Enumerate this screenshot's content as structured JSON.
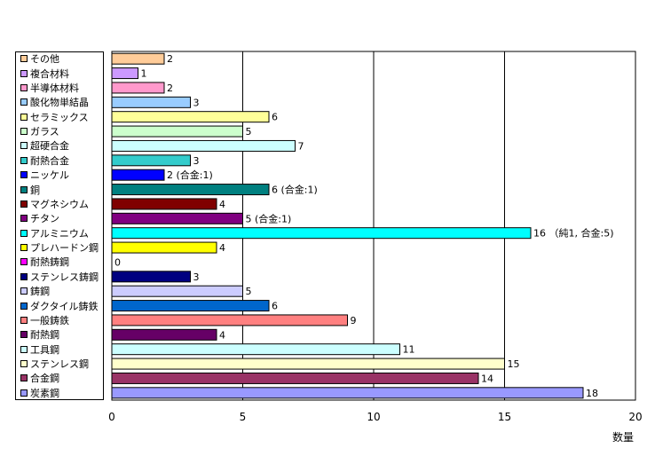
{
  "chart_data": {
    "type": "bar",
    "orientation": "horizontal",
    "categories": [
      "その他",
      "複合材料",
      "半導体材料",
      "酸化物単結晶",
      "セラミックス",
      "ガラス",
      "超硬合金",
      "耐熱合金",
      "ニッケル",
      "銅",
      "マグネシウム",
      "チタン",
      "アルミニウム",
      "プレハードン鋼",
      "耐熱鋳鋼",
      "ステンレス鋳鋼",
      "鋳鋼",
      "ダクタイル鋳鉄",
      "一般鋳鉄",
      "耐熱鋼",
      "工具鋼",
      "ステンレス鋼",
      "合金鋼",
      "炭素鋼"
    ],
    "values": [
      2,
      1,
      2,
      3,
      6,
      5,
      7,
      3,
      2,
      6,
      4,
      5,
      16,
      4,
      0,
      3,
      5,
      6,
      9,
      4,
      11,
      15,
      14,
      18
    ],
    "data_labels": [
      "2",
      "1",
      "2",
      "3",
      "6",
      "5",
      "7",
      "3",
      "2 (合金:1)",
      "6 (合金:1)",
      "4",
      "5 (合金:1)",
      "16 （純1, 合金:5)",
      "4",
      "0",
      "3",
      "5",
      "6",
      "9",
      "4",
      "11",
      "15",
      "14",
      "18"
    ],
    "colors": [
      "#FFCC99",
      "#CC99FF",
      "#FF99CC",
      "#99CCFF",
      "#FFFF99",
      "#CCFFCC",
      "#CCFFFF",
      "#33CCCC",
      "#0000FF",
      "#008080",
      "#800000",
      "#800080",
      "#00FFFF",
      "#FFFF00",
      "#FF00FF",
      "#000080",
      "#CCCCFF",
      "#0066CC",
      "#FF8080",
      "#660066",
      "#CCFFFF",
      "#FFFFCC",
      "#993366",
      "#9999FF"
    ],
    "xlabel": "数量",
    "x_ticks": [
      "0",
      "5",
      "10",
      "15",
      "20"
    ],
    "xlim": [
      0,
      20
    ],
    "grid": true,
    "legend": "left"
  }
}
